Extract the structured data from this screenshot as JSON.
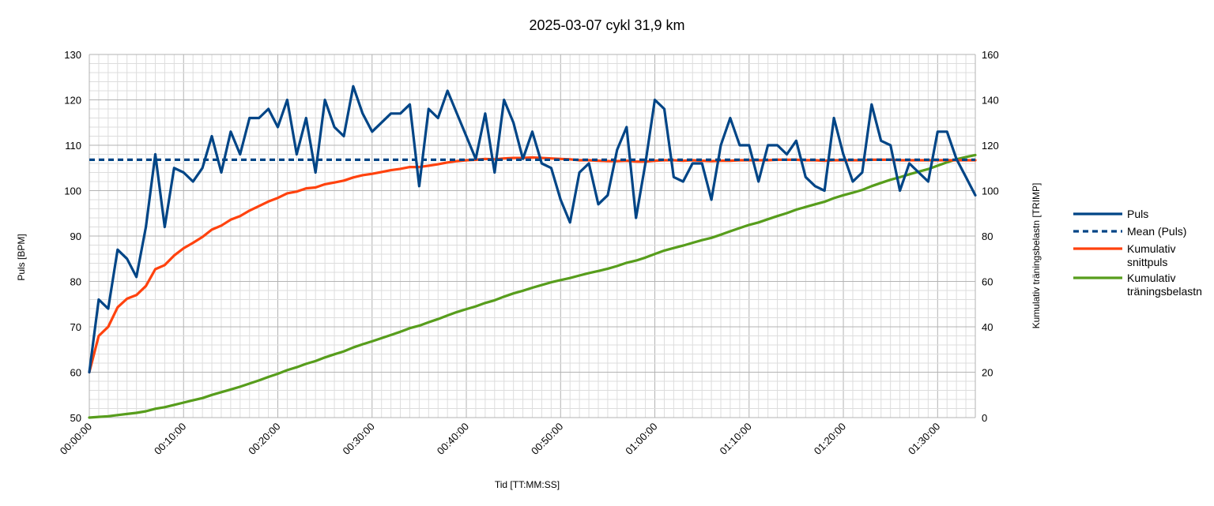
{
  "chart_data": {
    "type": "line",
    "title": "2025-03-07 cykl 31,9 km",
    "xlabel": "Tid [TT:MM:SS]",
    "ylabel": "Puls [BPM]",
    "y2label": "Kumulativ träningsbelastn [TRIMP]",
    "xlim_minutes": [
      0,
      94
    ],
    "ylim": [
      50,
      130
    ],
    "y2lim": [
      0,
      160
    ],
    "grid": true,
    "legend_position": "right",
    "x_tick_labels": [
      "00:00:00",
      "00:10:00",
      "00:20:00",
      "00:30:00",
      "00:40:00",
      "00:50:00",
      "01:00:00",
      "01:10:00",
      "01:20:00",
      "01:30:00"
    ],
    "y_tick_labels": [
      "50",
      "60",
      "70",
      "80",
      "90",
      "100",
      "110",
      "120",
      "130"
    ],
    "y2_tick_labels": [
      "0",
      "20",
      "40",
      "60",
      "80",
      "100",
      "120",
      "140",
      "160"
    ],
    "x_minutes": [
      0,
      1,
      2,
      3,
      4,
      5,
      6,
      7,
      8,
      9,
      10,
      11,
      12,
      13,
      14,
      15,
      16,
      17,
      18,
      19,
      20,
      21,
      22,
      23,
      24,
      25,
      26,
      27,
      28,
      29,
      30,
      31,
      32,
      33,
      34,
      35,
      36,
      37,
      38,
      39,
      40,
      41,
      42,
      43,
      44,
      45,
      46,
      47,
      48,
      49,
      50,
      51,
      52,
      53,
      54,
      55,
      56,
      57,
      58,
      59,
      60,
      61,
      62,
      63,
      64,
      65,
      66,
      67,
      68,
      69,
      70,
      71,
      72,
      73,
      74,
      75,
      76,
      77,
      78,
      79,
      80,
      81,
      82,
      83,
      84,
      85,
      86,
      87,
      88,
      89,
      90,
      91,
      92,
      93,
      94
    ],
    "series": [
      {
        "name": "Puls",
        "axis": "left",
        "color": "#004586",
        "style": "solid",
        "values": [
          60,
          76,
          74,
          87,
          85,
          81,
          92,
          108,
          92,
          105,
          104,
          102,
          105,
          112,
          104,
          113,
          108,
          116,
          116,
          118,
          114,
          120,
          108,
          116,
          104,
          120,
          114,
          112,
          123,
          117,
          113,
          115,
          117,
          117,
          119,
          101,
          118,
          116,
          122,
          117,
          112,
          107,
          117,
          104,
          120,
          115,
          107,
          113,
          106,
          105,
          98,
          93,
          104,
          106,
          97,
          99,
          109,
          114,
          94,
          106,
          120,
          118,
          103,
          102,
          106,
          106,
          98,
          110,
          116,
          110,
          110,
          102,
          110,
          110,
          108,
          111,
          103,
          101,
          100,
          116,
          108,
          102,
          104,
          119,
          111,
          110,
          100,
          106,
          104,
          102,
          113,
          113,
          107,
          103,
          99
        ]
      },
      {
        "name": "Mean (Puls)",
        "axis": "left",
        "color": "#004586",
        "style": "dashed",
        "values": [
          106.8,
          106.8
        ]
      },
      {
        "name": "Kumulativ snittpuls",
        "axis": "left",
        "color": "#ff420e",
        "style": "solid",
        "values": [
          60,
          68,
          70,
          74.3,
          76.2,
          77,
          79,
          82.7,
          83.6,
          85.7,
          87.3,
          88.5,
          89.8,
          91.4,
          92.3,
          93.6,
          94.4,
          95.6,
          96.6,
          97.6,
          98.4,
          99.4,
          99.8,
          100.5,
          100.7,
          101.4,
          101.8,
          102.2,
          102.9,
          103.4,
          103.7,
          104.1,
          104.5,
          104.8,
          105.2,
          105.2,
          105.5,
          105.8,
          106.2,
          106.5,
          106.7,
          106.8,
          107,
          106.9,
          107.1,
          107.2,
          107.2,
          107.3,
          107.2,
          107.1,
          107,
          106.9,
          106.7,
          106.7,
          106.6,
          106.5,
          106.5,
          106.6,
          106.4,
          106.4,
          106.6,
          106.7,
          106.7,
          106.6,
          106.7,
          106.6,
          106.5,
          106.6,
          106.6,
          106.7,
          106.7,
          106.7,
          106.7,
          106.8,
          106.8,
          106.8,
          106.7,
          106.7,
          106.6,
          106.7,
          106.7,
          106.7,
          106.7,
          106.8,
          106.8,
          106.8,
          106.7,
          106.7,
          106.7,
          106.7,
          106.7,
          106.7,
          106.7,
          106.7,
          106.7
        ]
      },
      {
        "name": "Kumulativ träningsbelastn",
        "axis": "right",
        "color": "#579d1c",
        "style": "solid",
        "values": [
          0,
          0.3,
          0.6,
          1.1,
          1.6,
          2.1,
          2.8,
          3.9,
          4.6,
          5.6,
          6.6,
          7.6,
          8.6,
          10,
          11.2,
          12.4,
          13.6,
          15,
          16.4,
          17.9,
          19.3,
          20.9,
          22.2,
          23.7,
          24.9,
          26.5,
          27.9,
          29.2,
          30.9,
          32.3,
          33.6,
          35,
          36.4,
          37.8,
          39.4,
          40.5,
          42,
          43.4,
          45,
          46.5,
          47.8,
          49,
          50.5,
          51.7,
          53.3,
          54.7,
          55.9,
          57.2,
          58.4,
          59.6,
          60.6,
          61.5,
          62.6,
          63.7,
          64.6,
          65.6,
          66.8,
          68.2,
          69.2,
          70.5,
          72.1,
          73.6,
          74.7,
          75.8,
          77,
          78.2,
          79.2,
          80.6,
          82.1,
          83.5,
          84.9,
          86,
          87.4,
          88.8,
          90.1,
          91.6,
          92.8,
          94,
          95.1,
          96.7,
          98,
          99.1,
          100.3,
          102,
          103.4,
          104.8,
          105.9,
          107.2,
          108.4,
          109.5,
          111,
          112.5,
          113.8,
          114.8,
          115.7
        ]
      }
    ],
    "legend": [
      {
        "label": "Puls",
        "series": 0
      },
      {
        "label": "Mean (Puls)",
        "series": 1
      },
      {
        "label": "Kumulativ snittpuls",
        "series": 2
      },
      {
        "label": "Kumulativ träningsbelastn",
        "series": 3
      }
    ]
  }
}
